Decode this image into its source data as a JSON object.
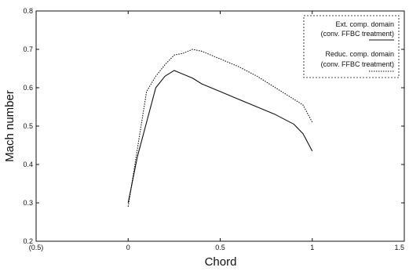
{
  "chart_data": {
    "type": "line",
    "title": "",
    "xlabel": "Chord",
    "ylabel": "Mach number",
    "xlim": [
      -0.5,
      1.5
    ],
    "ylim": [
      0.2,
      0.8
    ],
    "x_ticks": [
      -0.5,
      0,
      0.5,
      1,
      1.5
    ],
    "x_tick_labels": [
      "(0.5)",
      "0",
      "0.5",
      "1",
      "1.5"
    ],
    "y_ticks": [
      0.2,
      0.3,
      0.4,
      0.5,
      0.6,
      0.7,
      0.8
    ],
    "y_tick_labels": [
      "0.2",
      "0.3",
      "0.4",
      "0.5",
      "0.6",
      "0.7",
      "0.8"
    ],
    "grid": false,
    "legend_position": "top-right",
    "series": [
      {
        "name": "Ext. comp. domain (conv. FFBC treatment)",
        "legend_lines": [
          "Ext. comp. domain",
          "(conv. FFBC treatment)"
        ],
        "line_style": "solid",
        "color": "#111111",
        "x": [
          0,
          0.05,
          0.1,
          0.15,
          0.2,
          0.25,
          0.3,
          0.35,
          0.4,
          0.5,
          0.6,
          0.7,
          0.8,
          0.9,
          0.95,
          1.0
        ],
        "y": [
          0.3,
          0.42,
          0.51,
          0.6,
          0.63,
          0.645,
          0.635,
          0.625,
          0.61,
          0.59,
          0.57,
          0.55,
          0.53,
          0.505,
          0.48,
          0.435
        ]
      },
      {
        "name": "Reduc. comp. domain (conv. FFBC treatment)",
        "legend_lines": [
          "Reduc. comp. domain",
          "(conv. FFBC treatment)"
        ],
        "line_style": "dotted",
        "color": "#111111",
        "x": [
          0,
          0.05,
          0.1,
          0.15,
          0.2,
          0.25,
          0.3,
          0.35,
          0.4,
          0.5,
          0.6,
          0.7,
          0.8,
          0.9,
          0.95,
          1.0
        ],
        "y": [
          0.29,
          0.44,
          0.59,
          0.63,
          0.66,
          0.685,
          0.69,
          0.7,
          0.695,
          0.675,
          0.655,
          0.63,
          0.6,
          0.57,
          0.555,
          0.51
        ]
      }
    ]
  }
}
